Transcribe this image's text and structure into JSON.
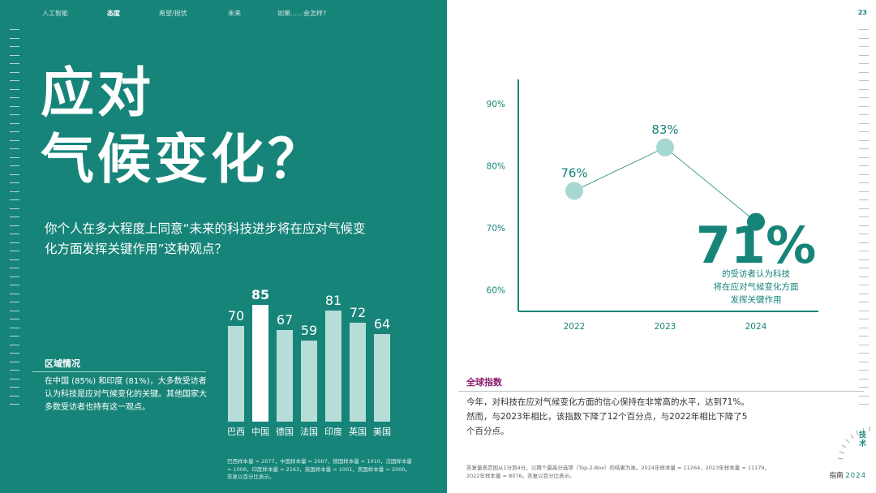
{
  "nav": {
    "items": [
      "人工智能",
      "态度",
      "希望/担忧",
      "未来",
      "如果……会怎样?"
    ],
    "active_index": 1
  },
  "page_number": "23",
  "title": {
    "line1": "应对",
    "line2": "气候变化？"
  },
  "question": "你个人在多大程度上同意“未来的科技进步将在应对气候变化方面发挥关键作用”这种观点？",
  "region": {
    "title": "区域情况",
    "text": "在中国 (85%) 和印度 (81%)，大多数受访者认为科技是应对气候变化的关键。其他国家大多数受访者也持有这一观点。"
  },
  "bar_note": "巴西样本量 = 2077，中国样本量 = 2007，德国样本量 = 1010，法国样本量 = 1006，印度样本量 = 2163，英国样本量 = 1001，美国样本量 = 2000。答复以百分比表示。",
  "global": {
    "title": "全球指数",
    "text": "今年，对科技在应对气候变化方面的信心保持在非常高的水平，达到71%。然而，与2023年相比，该指数下降了12个百分点，与2022年相比下降了5个百分点。",
    "big_value": "71%",
    "big_caption": [
      "的受访者认为科技",
      "将在应对气候变化方面",
      "发挥关键作用"
    ]
  },
  "right_note": "答复量表范围从1分到4分，以两个最高分选项（Top-2-Box）的结果为准。2024年样本量 = 11264，2023年样本量 = 11179，2022年样本量 = 8076。答复以百分比表示。",
  "brand": {
    "line1": "技术",
    "line2_prefix": "指南",
    "line2_year": "2024"
  },
  "colors": {
    "teal": "#178479",
    "bar_light": "#b7ddd8",
    "bar_highlight": "#ffffff",
    "point_light": "#a6d8d1",
    "point_dark": "#178479",
    "magenta": "#8b1e6d"
  },
  "chart_data": [
    {
      "type": "bar",
      "title": "",
      "categories": [
        "巴西",
        "中国",
        "德国",
        "法国",
        "印度",
        "英国",
        "美国"
      ],
      "values": [
        70,
        85,
        67,
        59,
        81,
        72,
        64
      ],
      "highlight_index": 1,
      "ylim": [
        0,
        100
      ]
    },
    {
      "type": "line",
      "title": "全球指数",
      "x": [
        "2022",
        "2023",
        "2024"
      ],
      "values": [
        76,
        83,
        71
      ],
      "value_labels": [
        "76%",
        "83%",
        ""
      ],
      "yticks": [
        "60%",
        "70%",
        "80%",
        "90%"
      ],
      "ytick_values": [
        60,
        70,
        80,
        90
      ],
      "ylim": [
        55,
        95
      ]
    }
  ]
}
